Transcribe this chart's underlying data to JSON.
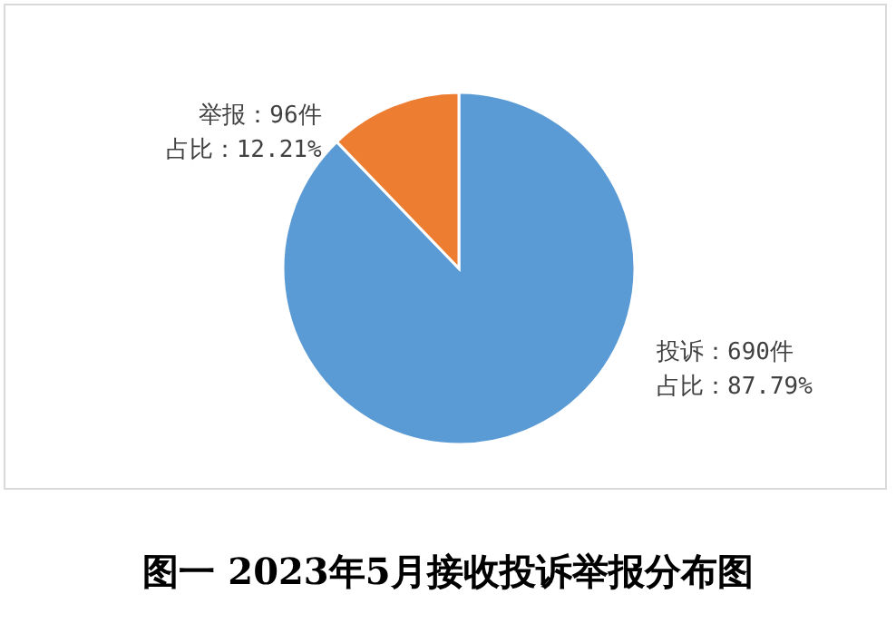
{
  "chart_data": {
    "type": "pie",
    "title": "图一 2023年5月接收投诉举报分布图",
    "categories": [
      "投诉：690件",
      "举报：96件"
    ],
    "values": [
      87.79,
      12.21
    ],
    "colors": [
      "#5b9bd5",
      "#ed7d31"
    ],
    "value_labels": [
      "占比：87.79%",
      "占比：12.21%"
    ]
  }
}
